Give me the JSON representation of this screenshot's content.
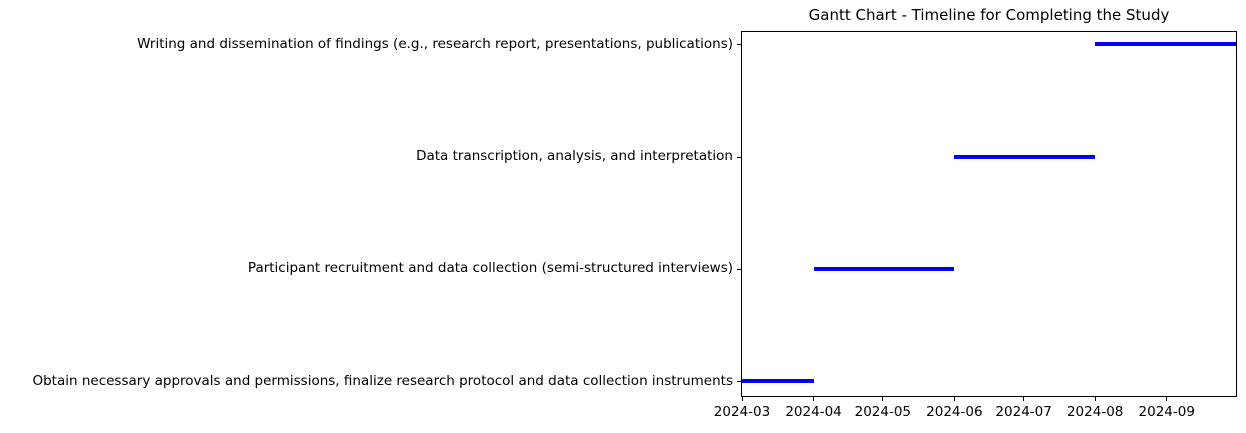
{
  "figure": {
    "background": "#ffffff",
    "spine_color": "#000000",
    "text_color": "#000000"
  },
  "chart_data": {
    "type": "bar",
    "subtype": "gantt",
    "orientation": "horizontal",
    "title": "Gantt Chart - Timeline for Completing the Study",
    "bar_color": "#0000ff",
    "grid": false,
    "legend": false,
    "xlim": [
      "2024-03-01",
      "2024-10-01"
    ],
    "x_ticks": [
      {
        "date": "2024-03-01",
        "label": "2024-03"
      },
      {
        "date": "2024-04-01",
        "label": "2024-04"
      },
      {
        "date": "2024-05-01",
        "label": "2024-05"
      },
      {
        "date": "2024-06-01",
        "label": "2024-06"
      },
      {
        "date": "2024-07-01",
        "label": "2024-07"
      },
      {
        "date": "2024-08-01",
        "label": "2024-08"
      },
      {
        "date": "2024-09-01",
        "label": "2024-09"
      }
    ],
    "tasks_bottom_to_top": [
      {
        "label": "Obtain necessary approvals and permissions, finalize research protocol and data collection instruments",
        "start": "2024-03-01",
        "end": "2024-04-01"
      },
      {
        "label": "Participant recruitment and data collection (semi-structured interviews)",
        "start": "2024-04-01",
        "end": "2024-06-01"
      },
      {
        "label": "Data transcription, analysis, and interpretation",
        "start": "2024-06-01",
        "end": "2024-08-01"
      },
      {
        "label": "Writing and dissemination of findings (e.g., research report, presentations, publications)",
        "start": "2024-08-01",
        "end": "2024-10-01"
      }
    ]
  }
}
